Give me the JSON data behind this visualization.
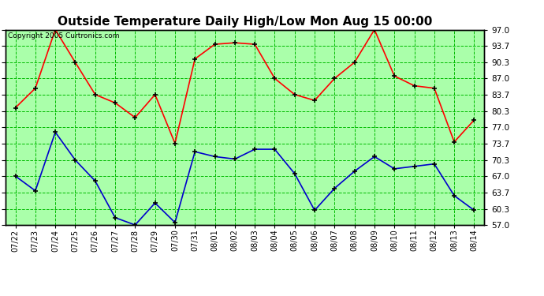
{
  "title": "Outside Temperature Daily High/Low Mon Aug 15 00:00",
  "copyright_text": "Copyright 2005 Curtronics.com",
  "dates": [
    "07/22",
    "07/23",
    "07/24",
    "07/25",
    "07/26",
    "07/27",
    "07/28",
    "07/29",
    "07/30",
    "07/31",
    "08/01",
    "08/02",
    "08/03",
    "08/04",
    "08/05",
    "08/06",
    "08/07",
    "08/08",
    "08/09",
    "08/10",
    "08/11",
    "08/12",
    "08/13",
    "08/14"
  ],
  "high_temps": [
    81.0,
    85.0,
    97.0,
    90.3,
    83.7,
    82.0,
    79.0,
    83.7,
    73.7,
    91.0,
    94.0,
    94.3,
    94.0,
    87.0,
    83.7,
    82.5,
    87.0,
    90.3,
    97.0,
    87.5,
    85.5,
    85.0,
    74.0,
    78.5
  ],
  "low_temps": [
    67.0,
    64.0,
    76.0,
    70.3,
    66.0,
    58.5,
    57.0,
    61.5,
    57.5,
    72.0,
    71.0,
    70.5,
    72.5,
    72.5,
    67.5,
    60.0,
    64.5,
    68.0,
    71.0,
    68.5,
    69.0,
    69.5,
    63.0,
    60.0
  ],
  "high_color": "#ff0000",
  "low_color": "#0000cc",
  "bg_color": "#aaffaa",
  "grid_color": "#00bb00",
  "title_fontsize": 11,
  "ytick_vals": [
    57.0,
    60.3,
    63.7,
    67.0,
    70.3,
    73.7,
    77.0,
    80.3,
    83.7,
    87.0,
    90.3,
    93.7,
    97.0
  ],
  "ytick_labels": [
    "57.0",
    "60.3",
    "63.7",
    "67.0",
    "70.3",
    "73.7",
    "77.0",
    "80.3",
    "83.7",
    "87.0",
    "90.3",
    "93.7",
    "97.0"
  ],
  "ymin": 57.0,
  "ymax": 97.0
}
